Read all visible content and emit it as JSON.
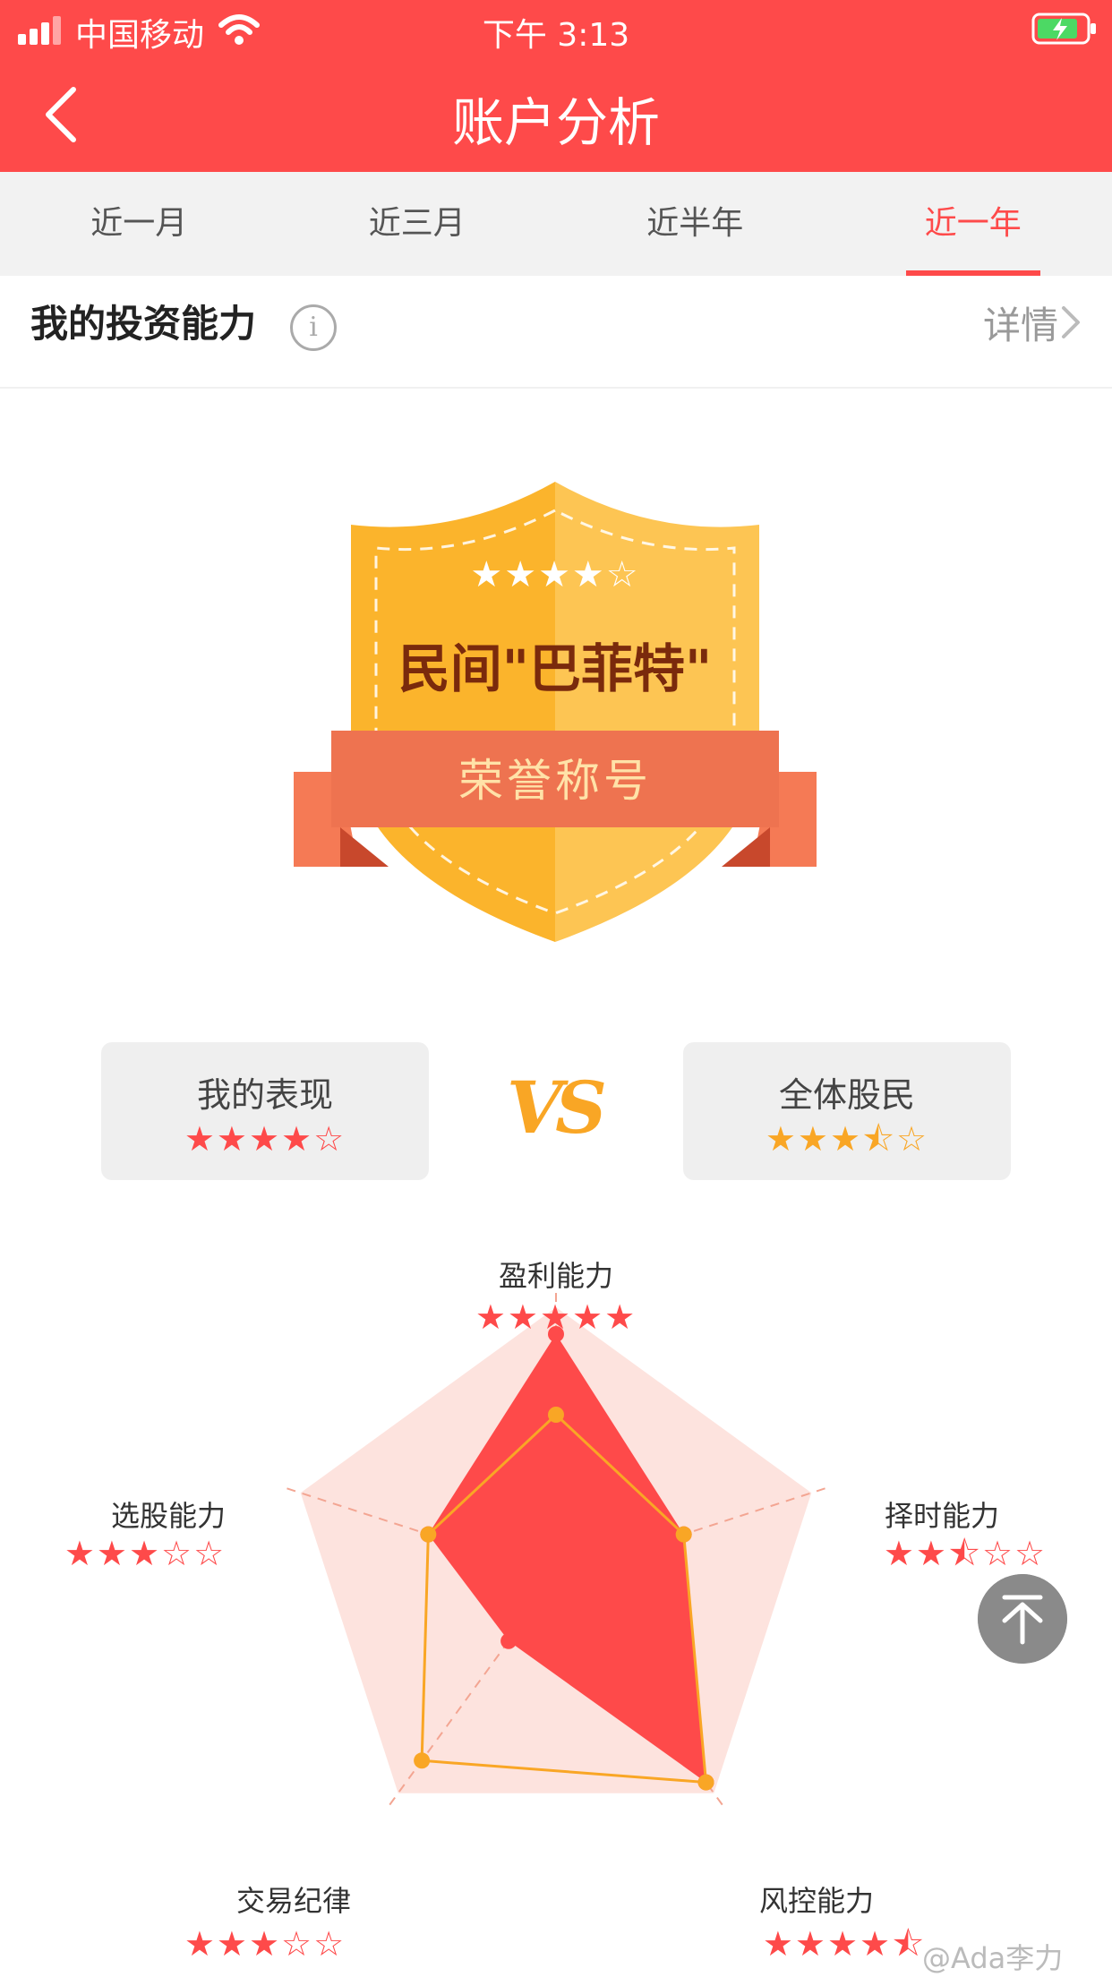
{
  "status_bar": {
    "carrier": "中国移动",
    "time": "下午 3:13"
  },
  "nav": {
    "title": "账户分析"
  },
  "tabs": [
    {
      "label": "近一月",
      "active": false
    },
    {
      "label": "近三月",
      "active": false
    },
    {
      "label": "近半年",
      "active": false
    },
    {
      "label": "近一年",
      "active": true
    }
  ],
  "section": {
    "title": "我的投资能力",
    "info": "i",
    "detail": "详情"
  },
  "badge": {
    "stars": "★★★★☆",
    "title": "民间\"巴菲特\"",
    "ribbon": "荣誉称号"
  },
  "compare": {
    "mine": {
      "label": "我的表现",
      "rating": 4
    },
    "all": {
      "label": "全体股民",
      "rating": 3.5
    },
    "vs": "VS"
  },
  "radar": {
    "axes": [
      {
        "label": "盈利能力",
        "rating": 5
      },
      {
        "label": "择时能力",
        "rating": 2.5
      },
      {
        "label": "风控能力",
        "rating": 4.5
      },
      {
        "label": "交易纪律",
        "rating": 3
      },
      {
        "label": "选股能力",
        "rating": 3
      }
    ],
    "mine_values": [
      0.9,
      0.5,
      0.95,
      0.3,
      0.5
    ],
    "all_values": [
      0.6,
      0.5,
      0.95,
      0.85,
      0.5
    ]
  },
  "watermark": "@Ada李力",
  "colors": {
    "primary": "#fe4a4a",
    "accent": "#f9a625"
  }
}
